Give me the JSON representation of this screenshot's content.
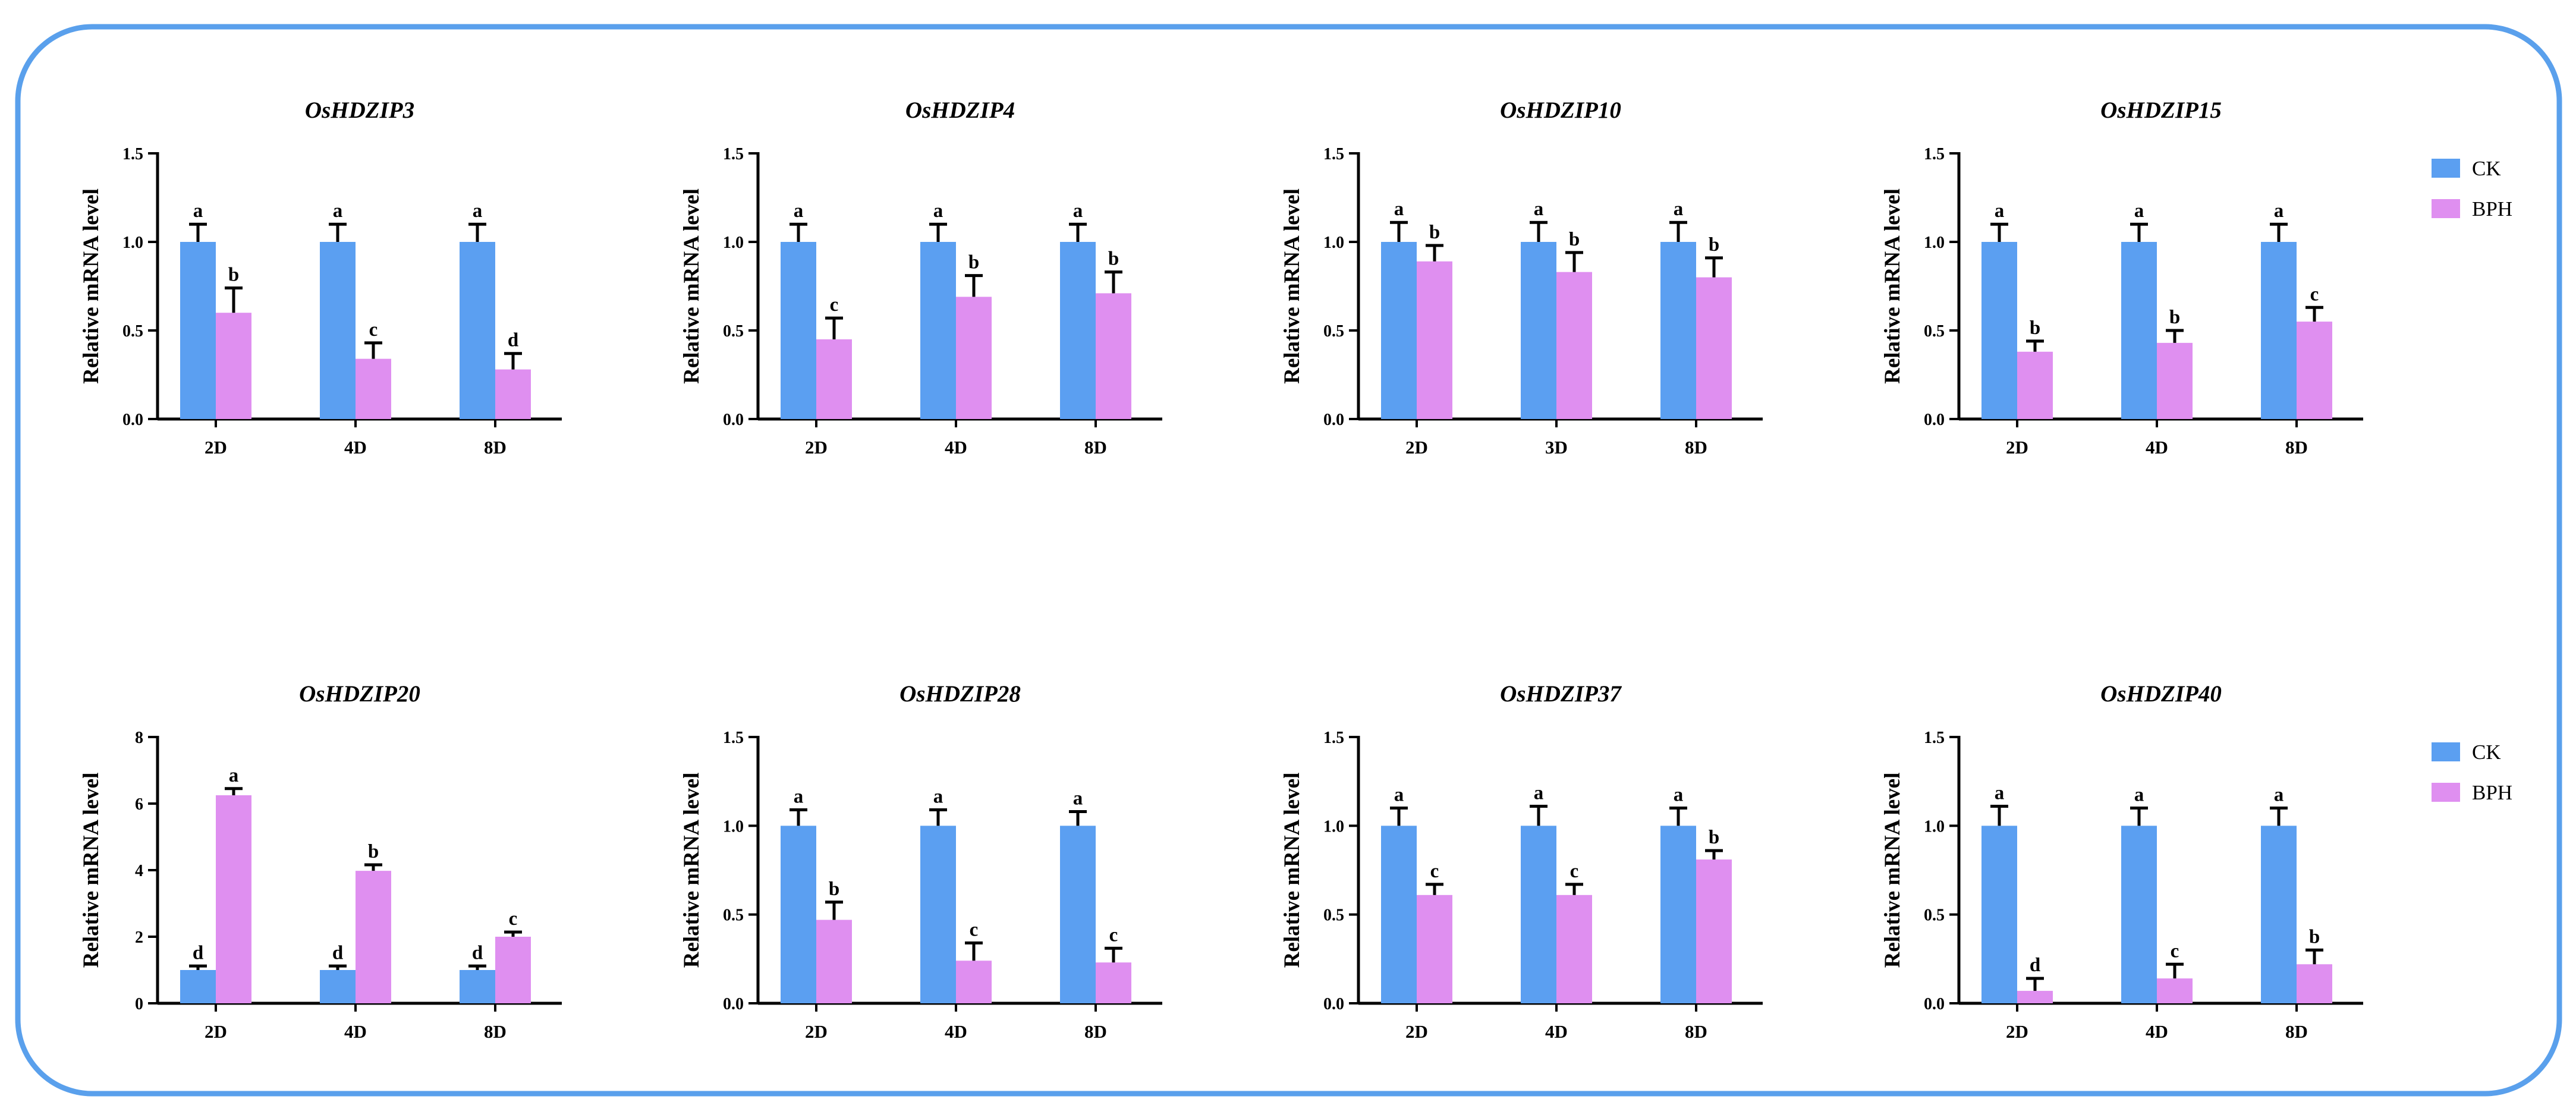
{
  "colors": {
    "ck": "#5b9ff1",
    "bph": "#df8ff0",
    "frame": "#5aa0ec"
  },
  "legend": {
    "ck": "CK",
    "bph": "BPH"
  },
  "ylabel": "Relative mRNA level",
  "chart_data": [
    {
      "type": "bar",
      "title": "OsHDZIP3",
      "ylabel": "Relative mRNA level",
      "categories": [
        "2D",
        "4D",
        "8D"
      ],
      "ylim": [
        0,
        1.5
      ],
      "yticks": [
        "0.0",
        "0.5",
        "1.0",
        "1.5"
      ],
      "series": [
        {
          "name": "CK",
          "values": [
            1.0,
            1.0,
            1.0
          ],
          "errors": [
            0.1,
            0.1,
            0.1
          ],
          "letters": [
            "a",
            "a",
            "a"
          ]
        },
        {
          "name": "BPH",
          "values": [
            0.6,
            0.34,
            0.28
          ],
          "errors": [
            0.14,
            0.09,
            0.09
          ],
          "letters": [
            "b",
            "c",
            "d"
          ]
        }
      ]
    },
    {
      "type": "bar",
      "title": "OsHDZIP4",
      "ylabel": "Relative mRNA level",
      "categories": [
        "2D",
        "4D",
        "8D"
      ],
      "ylim": [
        0,
        1.5
      ],
      "yticks": [
        "0.0",
        "0.5",
        "1.0",
        "1.5"
      ],
      "series": [
        {
          "name": "CK",
          "values": [
            1.0,
            1.0,
            1.0
          ],
          "errors": [
            0.1,
            0.1,
            0.1
          ],
          "letters": [
            "a",
            "a",
            "a"
          ]
        },
        {
          "name": "BPH",
          "values": [
            0.45,
            0.69,
            0.71
          ],
          "errors": [
            0.12,
            0.12,
            0.12
          ],
          "letters": [
            "c",
            "b",
            "b"
          ]
        }
      ]
    },
    {
      "type": "bar",
      "title": "OsHDZIP10",
      "ylabel": "Relative mRNA level",
      "categories": [
        "2D",
        "3D",
        "8D"
      ],
      "ylim": [
        0,
        1.5
      ],
      "yticks": [
        "0.0",
        "0.5",
        "1.0",
        "1.5"
      ],
      "series": [
        {
          "name": "CK",
          "values": [
            1.0,
            1.0,
            1.0
          ],
          "errors": [
            0.11,
            0.11,
            0.11
          ],
          "letters": [
            "a",
            "a",
            "a"
          ]
        },
        {
          "name": "BPH",
          "values": [
            0.89,
            0.83,
            0.8
          ],
          "errors": [
            0.09,
            0.11,
            0.11
          ],
          "letters": [
            "b",
            "b",
            "b"
          ]
        }
      ]
    },
    {
      "type": "bar",
      "title": "OsHDZIP15",
      "ylabel": "Relative mRNA level",
      "categories": [
        "2D",
        "4D",
        "8D"
      ],
      "ylim": [
        0,
        1.5
      ],
      "yticks": [
        "0.0",
        "0.5",
        "1.0",
        "1.5"
      ],
      "series": [
        {
          "name": "CK",
          "values": [
            1.0,
            1.0,
            1.0
          ],
          "errors": [
            0.1,
            0.1,
            0.1
          ],
          "letters": [
            "a",
            "a",
            "a"
          ]
        },
        {
          "name": "BPH",
          "values": [
            0.38,
            0.43,
            0.55
          ],
          "errors": [
            0.06,
            0.07,
            0.08
          ],
          "letters": [
            "b",
            "b",
            "c"
          ]
        }
      ]
    },
    {
      "type": "bar",
      "title": "OsHDZIP20",
      "ylabel": "Relative mRNA level",
      "categories": [
        "2D",
        "4D",
        "8D"
      ],
      "ylim": [
        0,
        8
      ],
      "yticks": [
        "0",
        "2",
        "4",
        "6",
        "8"
      ],
      "series": [
        {
          "name": "CK",
          "values": [
            1.0,
            1.0,
            1.0
          ],
          "errors": [
            0.12,
            0.12,
            0.12
          ],
          "letters": [
            "d",
            "d",
            "d"
          ]
        },
        {
          "name": "BPH",
          "values": [
            6.25,
            3.98,
            2.0
          ],
          "errors": [
            0.2,
            0.18,
            0.14
          ],
          "letters": [
            "a",
            "b",
            "c"
          ]
        }
      ]
    },
    {
      "type": "bar",
      "title": "OsHDZIP28",
      "ylabel": "Relative mRNA level",
      "categories": [
        "2D",
        "4D",
        "8D"
      ],
      "ylim": [
        0,
        1.5
      ],
      "yticks": [
        "0.0",
        "0.5",
        "1.0",
        "1.5"
      ],
      "series": [
        {
          "name": "CK",
          "values": [
            1.0,
            1.0,
            1.0
          ],
          "errors": [
            0.09,
            0.09,
            0.08
          ],
          "letters": [
            "a",
            "a",
            "a"
          ]
        },
        {
          "name": "BPH",
          "values": [
            0.47,
            0.24,
            0.23
          ],
          "errors": [
            0.1,
            0.1,
            0.08
          ],
          "letters": [
            "b",
            "c",
            "c"
          ]
        }
      ]
    },
    {
      "type": "bar",
      "title": "OsHDZIP37",
      "ylabel": "Relative mRNA level",
      "categories": [
        "2D",
        "4D",
        "8D"
      ],
      "ylim": [
        0,
        1.5
      ],
      "yticks": [
        "0.0",
        "0.5",
        "1.0",
        "1.5"
      ],
      "series": [
        {
          "name": "CK",
          "values": [
            1.0,
            1.0,
            1.0
          ],
          "errors": [
            0.1,
            0.11,
            0.1
          ],
          "letters": [
            "a",
            "a",
            "a"
          ]
        },
        {
          "name": "BPH",
          "values": [
            0.61,
            0.61,
            0.81
          ],
          "errors": [
            0.06,
            0.06,
            0.05
          ],
          "letters": [
            "c",
            "c",
            "b"
          ]
        }
      ]
    },
    {
      "type": "bar",
      "title": "OsHDZIP40",
      "ylabel": "Relative mRNA level",
      "categories": [
        "2D",
        "4D",
        "8D"
      ],
      "ylim": [
        0,
        1.5
      ],
      "yticks": [
        "0.0",
        "0.5",
        "1.0",
        "1.5"
      ],
      "series": [
        {
          "name": "CK",
          "values": [
            1.0,
            1.0,
            1.0
          ],
          "errors": [
            0.11,
            0.1,
            0.1
          ],
          "letters": [
            "a",
            "a",
            "a"
          ]
        },
        {
          "name": "BPH",
          "values": [
            0.07,
            0.14,
            0.22
          ],
          "errors": [
            0.07,
            0.08,
            0.08
          ],
          "letters": [
            "d",
            "c",
            "b"
          ]
        }
      ]
    }
  ]
}
